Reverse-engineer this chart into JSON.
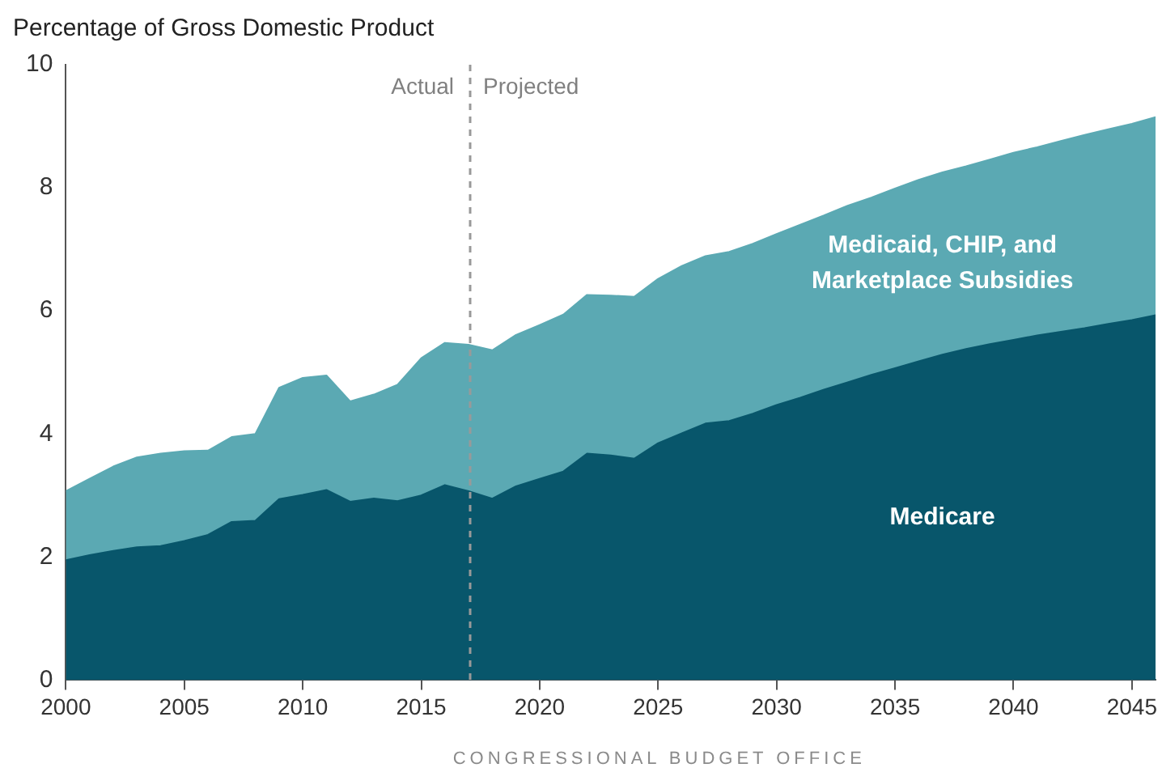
{
  "chart_data": {
    "type": "area",
    "stacked": true,
    "ylabel": "Percentage of Gross Domestic Product",
    "x": [
      2000,
      2001,
      2002,
      2003,
      2004,
      2005,
      2006,
      2007,
      2008,
      2009,
      2010,
      2011,
      2012,
      2013,
      2014,
      2015,
      2016,
      2017,
      2018,
      2019,
      2020,
      2021,
      2022,
      2023,
      2024,
      2025,
      2026,
      2027,
      2028,
      2029,
      2030,
      2031,
      2032,
      2033,
      2034,
      2035,
      2036,
      2037,
      2038,
      2039,
      2040,
      2041,
      2042,
      2043,
      2044,
      2045,
      2046
    ],
    "series": [
      {
        "name": "Medicare",
        "color": "#08566b",
        "values": [
          1.95,
          2.03,
          2.1,
          2.16,
          2.18,
          2.26,
          2.36,
          2.57,
          2.59,
          2.94,
          3.01,
          3.09,
          2.9,
          2.95,
          2.91,
          3.0,
          3.17,
          3.07,
          2.95,
          3.15,
          3.27,
          3.39,
          3.68,
          3.65,
          3.6,
          3.85,
          4.01,
          4.17,
          4.21,
          4.33,
          4.47,
          4.59,
          4.72,
          4.84,
          4.96,
          5.07,
          5.18,
          5.29,
          5.38,
          5.46,
          5.53,
          5.6,
          5.66,
          5.72,
          5.79,
          5.85,
          5.93
        ]
      },
      {
        "name": "Medicaid, CHIP, and Marketplace Subsidies",
        "color": "#5ba9b3",
        "values": [
          1.12,
          1.24,
          1.37,
          1.46,
          1.5,
          1.46,
          1.37,
          1.38,
          1.41,
          1.81,
          1.9,
          1.86,
          1.63,
          1.69,
          1.89,
          2.23,
          2.31,
          2.38,
          2.41,
          2.46,
          2.5,
          2.55,
          2.58,
          2.6,
          2.63,
          2.67,
          2.72,
          2.72,
          2.75,
          2.76,
          2.78,
          2.81,
          2.83,
          2.87,
          2.88,
          2.92,
          2.95,
          2.96,
          2.97,
          3.0,
          3.04,
          3.06,
          3.1,
          3.14,
          3.16,
          3.19,
          3.22
        ]
      }
    ],
    "xlim": [
      2000,
      2046
    ],
    "xticks": [
      2000,
      2005,
      2010,
      2015,
      2020,
      2025,
      2030,
      2035,
      2040,
      2045
    ],
    "ylim": [
      0,
      10
    ],
    "yticks": [
      0,
      2,
      4,
      6,
      8,
      10
    ],
    "grid": false,
    "legend": false,
    "ref_lines": [
      {
        "axis": "x",
        "value": 2017,
        "color": "#999999",
        "line_style": "dashed"
      }
    ],
    "annotations": [
      "Actual",
      "Projected",
      "CONGRESSIONAL BUDGET OFFICE"
    ]
  }
}
